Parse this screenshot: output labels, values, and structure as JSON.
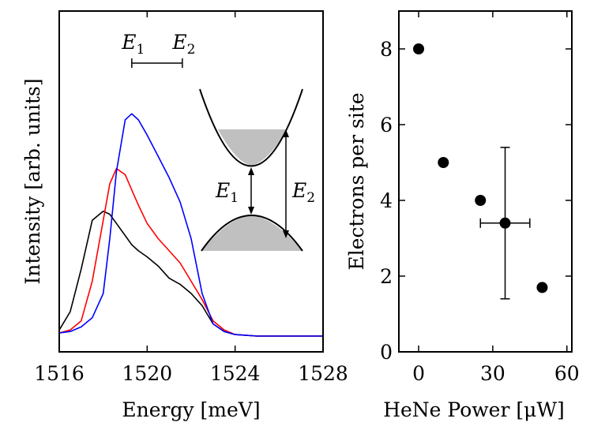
{
  "chart_data": [
    {
      "type": "line",
      "xlabel": "Energy [meV]",
      "ylabel": "Intensity [arb. units]",
      "xlim": [
        1516,
        1528
      ],
      "ylim": [
        0,
        1.0
      ],
      "xticks": [
        1516,
        1520,
        1524,
        1528
      ],
      "yticks": [],
      "x": [
        1516.0,
        1516.5,
        1517.0,
        1517.5,
        1518.0,
        1518.3,
        1518.6,
        1519.0,
        1519.3,
        1519.6,
        1520.0,
        1520.5,
        1521.0,
        1521.5,
        1522.0,
        1522.5,
        1523.0,
        1523.5,
        1524.0,
        1525.0,
        1526.0,
        1527.0,
        1528.0
      ],
      "series": [
        {
          "name": "black",
          "color": "#000000",
          "values": [
            0.02,
            0.08,
            0.22,
            0.38,
            0.41,
            0.4,
            0.37,
            0.33,
            0.3,
            0.28,
            0.26,
            0.23,
            0.19,
            0.17,
            0.14,
            0.1,
            0.04,
            0.015,
            0.005,
            0.0,
            0.0,
            0.0,
            0.0
          ]
        },
        {
          "name": "red",
          "color": "#ff0000",
          "values": [
            0.01,
            0.02,
            0.05,
            0.18,
            0.38,
            0.5,
            0.55,
            0.53,
            0.48,
            0.43,
            0.37,
            0.32,
            0.28,
            0.24,
            0.18,
            0.12,
            0.05,
            0.02,
            0.005,
            0.0,
            0.0,
            0.0,
            0.0
          ]
        },
        {
          "name": "blue",
          "color": "#0000ff",
          "values": [
            0.01,
            0.015,
            0.03,
            0.06,
            0.14,
            0.32,
            0.54,
            0.71,
            0.73,
            0.71,
            0.66,
            0.59,
            0.52,
            0.44,
            0.32,
            0.14,
            0.04,
            0.015,
            0.005,
            0.0,
            0.0,
            0.0,
            0.0
          ]
        }
      ],
      "annotations": {
        "bracket_labels": [
          {
            "main": "E",
            "sub": "1"
          },
          {
            "main": "E",
            "sub": "2"
          }
        ],
        "bracket_x": [
          1519.3,
          1521.6
        ],
        "inset_labels": [
          {
            "main": "E",
            "sub": "1"
          },
          {
            "main": "E",
            "sub": "2"
          }
        ]
      }
    },
    {
      "type": "scatter",
      "xlabel": "HeNe Power [μW]",
      "ylabel": "Electrons per site",
      "xlim": [
        -8,
        62
      ],
      "ylim": [
        0,
        9
      ],
      "xticks": [
        0,
        30,
        60
      ],
      "yticks": [
        0,
        2,
        4,
        6,
        8
      ],
      "points": [
        {
          "x": 0,
          "y": 8
        },
        {
          "x": 10,
          "y": 5
        },
        {
          "x": 25,
          "y": 4
        },
        {
          "x": 35,
          "y": 3.4,
          "xerr": 10,
          "yerr": 2
        },
        {
          "x": 50,
          "y": 1.7
        }
      ]
    }
  ]
}
